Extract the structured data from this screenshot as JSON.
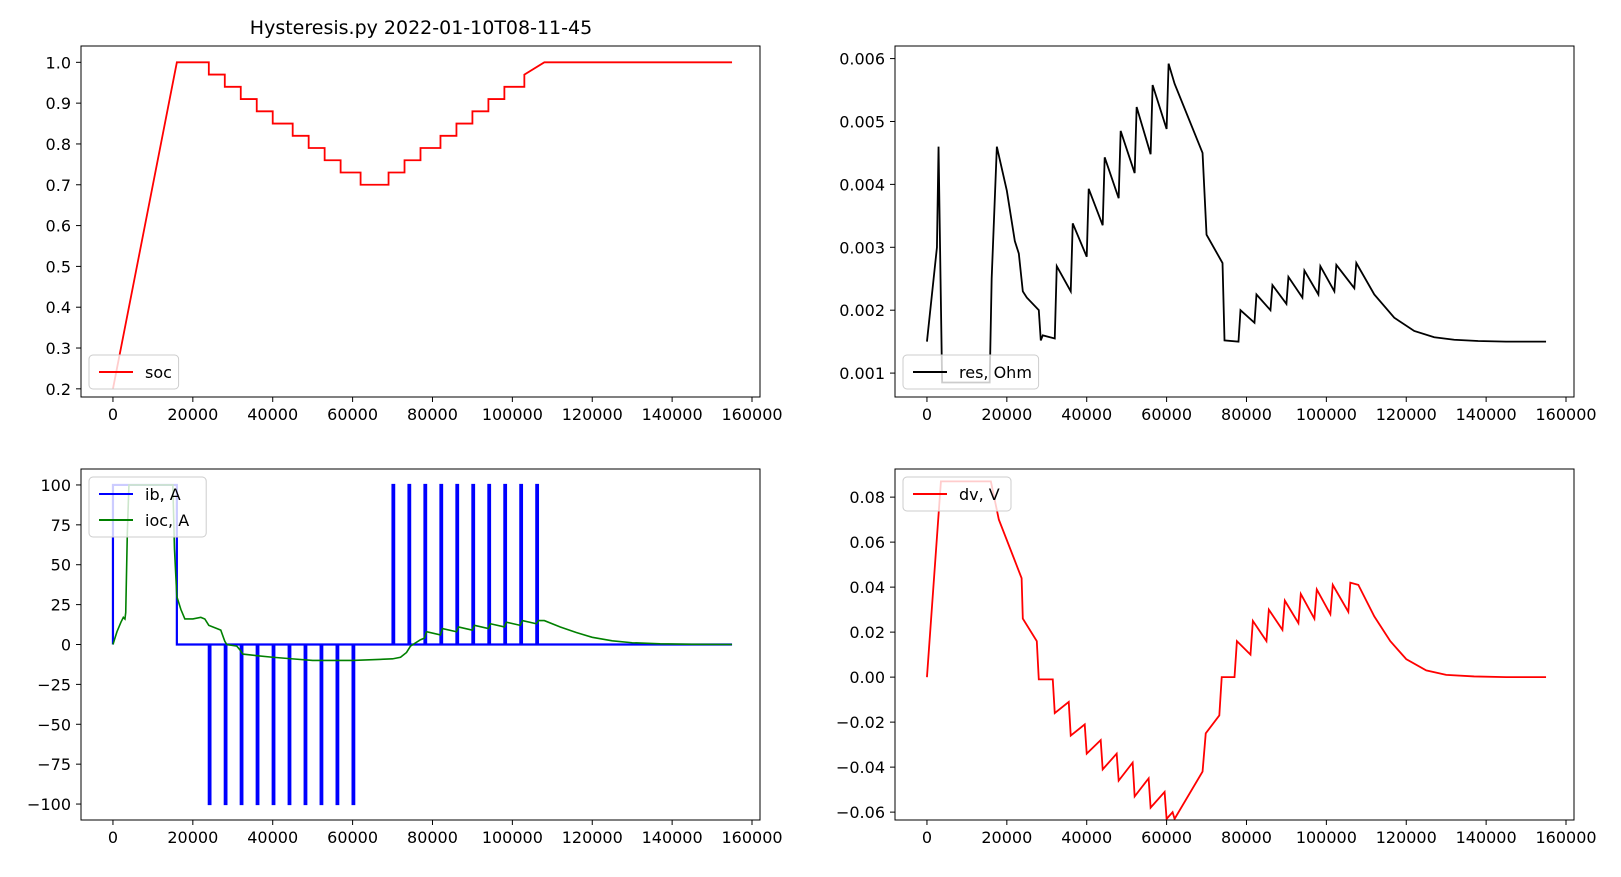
{
  "figure": {
    "title": "Hysteresis.py   2022-01-10T08-11-45"
  },
  "chart_data": [
    {
      "id": "soc",
      "type": "line",
      "xlim": [
        -8000,
        162000
      ],
      "ylim": [
        0.18,
        1.04
      ],
      "xticks": [
        0,
        20000,
        40000,
        60000,
        80000,
        100000,
        120000,
        140000,
        160000
      ],
      "yticks": [
        0.2,
        0.3,
        0.4,
        0.5,
        0.6,
        0.7,
        0.8,
        0.9,
        1.0
      ],
      "ytick_decimals": 1,
      "legend_loc": "lower left",
      "series": [
        {
          "name": "soc",
          "color": "#ff0000",
          "x": [
            0,
            16000,
            24000,
            24000,
            28000,
            28000,
            32000,
            32000,
            36000,
            36000,
            40000,
            40000,
            45000,
            45000,
            49000,
            49000,
            53000,
            53000,
            57000,
            57000,
            62000,
            62000,
            69000,
            69000,
            73000,
            73000,
            77000,
            77000,
            82000,
            82000,
            86000,
            86000,
            90000,
            90000,
            94000,
            94000,
            98000,
            98000,
            103000,
            103000,
            108000,
            155000
          ],
          "y": [
            0.2,
            1.0,
            1.0,
            0.97,
            0.97,
            0.94,
            0.94,
            0.91,
            0.91,
            0.88,
            0.88,
            0.85,
            0.85,
            0.82,
            0.82,
            0.79,
            0.79,
            0.76,
            0.76,
            0.73,
            0.73,
            0.7,
            0.7,
            0.73,
            0.73,
            0.76,
            0.76,
            0.79,
            0.79,
            0.82,
            0.82,
            0.85,
            0.85,
            0.88,
            0.88,
            0.91,
            0.91,
            0.94,
            0.94,
            0.97,
            1.0,
            1.0
          ]
        }
      ]
    },
    {
      "id": "res",
      "type": "line",
      "xlim": [
        -8000,
        162000
      ],
      "ylim": [
        0.00062,
        0.0062
      ],
      "xticks": [
        0,
        20000,
        40000,
        60000,
        80000,
        100000,
        120000,
        140000,
        160000
      ],
      "yticks": [
        0.001,
        0.002,
        0.003,
        0.004,
        0.005,
        0.006
      ],
      "ytick_decimals": 3,
      "legend_loc": "lower left",
      "series": [
        {
          "name": "res, Ohm",
          "color": "#000000",
          "x": [
            0,
            2500,
            2900,
            3400,
            3800,
            15700,
            16200,
            17500,
            20000,
            22000,
            23000,
            24000,
            25000,
            28000,
            28500,
            29000,
            32000,
            32500,
            36000,
            36500,
            40000,
            40500,
            44000,
            44500,
            48000,
            48500,
            52000,
            52500,
            56000,
            56500,
            60000,
            60500,
            62000,
            69000,
            70000,
            74000,
            74500,
            78000,
            78500,
            82000,
            82500,
            86000,
            86500,
            90000,
            90500,
            94000,
            94500,
            98000,
            98500,
            102000,
            102500,
            107000,
            107500,
            112000,
            117000,
            122000,
            127000,
            132000,
            138000,
            145000,
            155000
          ],
          "y": [
            0.0015,
            0.003,
            0.0046,
            0.0025,
            0.00085,
            0.00085,
            0.0025,
            0.0046,
            0.0039,
            0.0031,
            0.0029,
            0.0023,
            0.0022,
            0.002,
            0.00152,
            0.0016,
            0.00155,
            0.0027,
            0.0023,
            0.00338,
            0.00285,
            0.00393,
            0.00335,
            0.00443,
            0.00378,
            0.00485,
            0.00418,
            0.00523,
            0.00448,
            0.00558,
            0.00488,
            0.00592,
            0.0056,
            0.0045,
            0.0032,
            0.00275,
            0.00152,
            0.0015,
            0.002,
            0.0018,
            0.00225,
            0.002,
            0.0024,
            0.0021,
            0.00253,
            0.0022,
            0.00263,
            0.00225,
            0.0027,
            0.0023,
            0.00272,
            0.00235,
            0.00275,
            0.00225,
            0.00188,
            0.00167,
            0.00157,
            0.00153,
            0.00151,
            0.0015,
            0.0015
          ]
        }
      ]
    },
    {
      "id": "current",
      "type": "line",
      "xlim": [
        -8000,
        162000
      ],
      "ylim": [
        -110,
        110
      ],
      "xticks": [
        0,
        20000,
        40000,
        60000,
        80000,
        100000,
        120000,
        140000,
        160000
      ],
      "yticks": [
        -100,
        -75,
        -50,
        -25,
        0,
        25,
        50,
        75,
        100
      ],
      "ytick_decimals": 0,
      "legend_loc": "upper left",
      "series": [
        {
          "name": "ib, A",
          "color": "#0000ff",
          "width": 2.2,
          "x": [
            0,
            0,
            16000,
            16000,
            24000,
            24000,
            24400,
            24400,
            28000,
            28000,
            28400,
            28400,
            32000,
            32000,
            32400,
            32400,
            36000,
            36000,
            36400,
            36400,
            40000,
            40000,
            40400,
            40400,
            44000,
            44000,
            44400,
            44400,
            48000,
            48000,
            48400,
            48400,
            52000,
            52000,
            52400,
            52400,
            56000,
            56000,
            56400,
            56400,
            60000,
            60000,
            60400,
            60400,
            70000,
            70000,
            70400,
            70400,
            74000,
            74000,
            74400,
            74400,
            78000,
            78000,
            78400,
            78400,
            82000,
            82000,
            82400,
            82400,
            86000,
            86000,
            86400,
            86400,
            90000,
            90000,
            90400,
            90400,
            94000,
            94000,
            94400,
            94400,
            98000,
            98000,
            98400,
            98400,
            102000,
            102000,
            102400,
            102400,
            106000,
            106000,
            106400,
            106400,
            155000
          ],
          "y": [
            0,
            100,
            100,
            0,
            0,
            -100,
            -100,
            0,
            0,
            -100,
            -100,
            0,
            0,
            -100,
            -100,
            0,
            0,
            -100,
            -100,
            0,
            0,
            -100,
            -100,
            0,
            0,
            -100,
            -100,
            0,
            0,
            -100,
            -100,
            0,
            0,
            -100,
            -100,
            0,
            0,
            -100,
            -100,
            0,
            0,
            -100,
            -100,
            0,
            0,
            100,
            100,
            0,
            0,
            100,
            100,
            0,
            0,
            100,
            100,
            0,
            0,
            100,
            100,
            0,
            0,
            100,
            100,
            0,
            0,
            100,
            100,
            0,
            0,
            100,
            100,
            0,
            0,
            100,
            100,
            0,
            0,
            100,
            100,
            0,
            0,
            100,
            100,
            0,
            0
          ]
        },
        {
          "name": "ioc, A",
          "color": "#008000",
          "width": 1.6,
          "x": [
            0,
            1000,
            2000,
            2600,
            3000,
            3200,
            3600,
            4000,
            15000,
            15400,
            16000,
            17000,
            18000,
            20000,
            22000,
            23000,
            24000,
            26000,
            27000,
            28000,
            28500,
            31000,
            32000,
            32500,
            36000,
            40000,
            45000,
            50000,
            55000,
            60000,
            65000,
            70000,
            72000,
            73500,
            74500,
            77000,
            78000,
            78500,
            82000,
            82500,
            86000,
            86500,
            90000,
            90500,
            94000,
            94500,
            98000,
            98500,
            102000,
            102500,
            106000,
            106500,
            108000,
            112000,
            116000,
            120000,
            125000,
            130000,
            137000,
            145000,
            155000
          ],
          "y": [
            0,
            8,
            14,
            17,
            16,
            20,
            70,
            100,
            100,
            60,
            30,
            22,
            16,
            16,
            17,
            16,
            12,
            10,
            9,
            2,
            0,
            -1,
            -4,
            -6,
            -7,
            -8,
            -9,
            -10,
            -10,
            -10,
            -9.5,
            -9,
            -8,
            -5,
            -1,
            3,
            4,
            8,
            6,
            10,
            8,
            11,
            9,
            12,
            10,
            13,
            11,
            14,
            12,
            15,
            13,
            15,
            15,
            11,
            7.5,
            4.5,
            2.3,
            1.1,
            0.4,
            0.1,
            0
          ]
        }
      ]
    },
    {
      "id": "dv",
      "type": "line",
      "xlim": [
        -8000,
        162000
      ],
      "ylim": [
        -0.0635,
        0.0925
      ],
      "xticks": [
        0,
        20000,
        40000,
        60000,
        80000,
        100000,
        120000,
        140000,
        160000
      ],
      "yticks": [
        -0.06,
        -0.04,
        -0.02,
        0.0,
        0.02,
        0.04,
        0.06,
        0.08
      ],
      "ytick_decimals": 2,
      "legend_loc": "upper left",
      "series": [
        {
          "name": "dv, V",
          "color": "#ff0000",
          "x": [
            0,
            3500,
            16000,
            18000,
            23700,
            24000,
            27500,
            28000,
            31500,
            32000,
            35500,
            36000,
            39500,
            40000,
            43500,
            44000,
            47500,
            48000,
            51500,
            52000,
            55500,
            56000,
            59500,
            60000,
            61500,
            62000,
            69000,
            69800,
            73200,
            73800,
            77000,
            77600,
            81000,
            81600,
            85000,
            85600,
            89000,
            89600,
            93000,
            93600,
            97000,
            97600,
            101000,
            101600,
            105500,
            106000,
            108000,
            112000,
            116000,
            120000,
            125000,
            130000,
            137000,
            145000,
            155000
          ],
          "y": [
            0.0,
            0.087,
            0.087,
            0.07,
            0.044,
            0.026,
            0.016,
            -0.001,
            -0.001,
            -0.016,
            -0.011,
            -0.026,
            -0.021,
            -0.034,
            -0.028,
            -0.041,
            -0.034,
            -0.046,
            -0.038,
            -0.053,
            -0.045,
            -0.058,
            -0.051,
            -0.063,
            -0.06,
            -0.063,
            -0.042,
            -0.025,
            -0.017,
            0.0,
            0.0,
            0.016,
            0.01,
            0.025,
            0.016,
            0.03,
            0.021,
            0.034,
            0.024,
            0.037,
            0.026,
            0.039,
            0.028,
            0.041,
            0.029,
            0.042,
            0.041,
            0.027,
            0.016,
            0.008,
            0.003,
            0.001,
            0.0003,
            0.0,
            0.0
          ]
        }
      ]
    }
  ]
}
